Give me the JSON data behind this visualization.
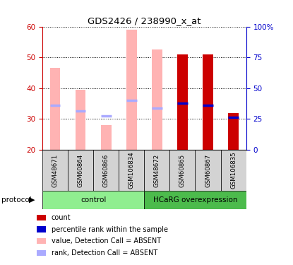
{
  "title": "GDS2426 / 238990_x_at",
  "samples": [
    "GSM48671",
    "GSM60864",
    "GSM60866",
    "GSM106834",
    "GSM48672",
    "GSM60865",
    "GSM60867",
    "GSM106835"
  ],
  "bar_top": [
    46.5,
    39.5,
    28.0,
    59.0,
    52.5,
    51.0,
    51.0,
    32.0
  ],
  "bar_bottom": [
    20.0,
    20.0,
    20.0,
    20.0,
    20.0,
    20.0,
    20.0,
    20.0
  ],
  "bar_colors": [
    "#FFB3B3",
    "#FFB3B3",
    "#FFB3B3",
    "#FFB3B3",
    "#FFB3B3",
    "#CC0000",
    "#CC0000",
    "#CC0000"
  ],
  "rank_marker_pos": [
    34.5,
    32.5,
    31.0,
    36.0,
    33.5,
    35.0,
    34.5,
    30.5
  ],
  "rank_colors": [
    "#AAAAFF",
    "#AAAAFF",
    "#AAAAFF",
    "#AAAAFF",
    "#AAAAFF",
    "#0000CC",
    "#0000CC",
    "#0000CC"
  ],
  "ylim_left": [
    20,
    60
  ],
  "ylim_right": [
    0,
    100
  ],
  "yticks_left": [
    20,
    30,
    40,
    50,
    60
  ],
  "yticks_right": [
    0,
    25,
    50,
    75,
    100
  ],
  "ytick_labels_right": [
    "0",
    "25",
    "50",
    "75",
    "100%"
  ],
  "left_axis_color": "#CC0000",
  "right_axis_color": "#0000CC",
  "protocol_label": "protocol",
  "legend_items": [
    {
      "color": "#CC0000",
      "label": "count"
    },
    {
      "color": "#0000CC",
      "label": "percentile rank within the sample"
    },
    {
      "color": "#FFB3B3",
      "label": "value, Detection Call = ABSENT"
    },
    {
      "color": "#AAAAFF",
      "label": "rank, Detection Call = ABSENT"
    }
  ],
  "control_color": "#90EE90",
  "hcarg_color": "#4CBB4C",
  "label_area_facecolor": "#D3D3D3"
}
